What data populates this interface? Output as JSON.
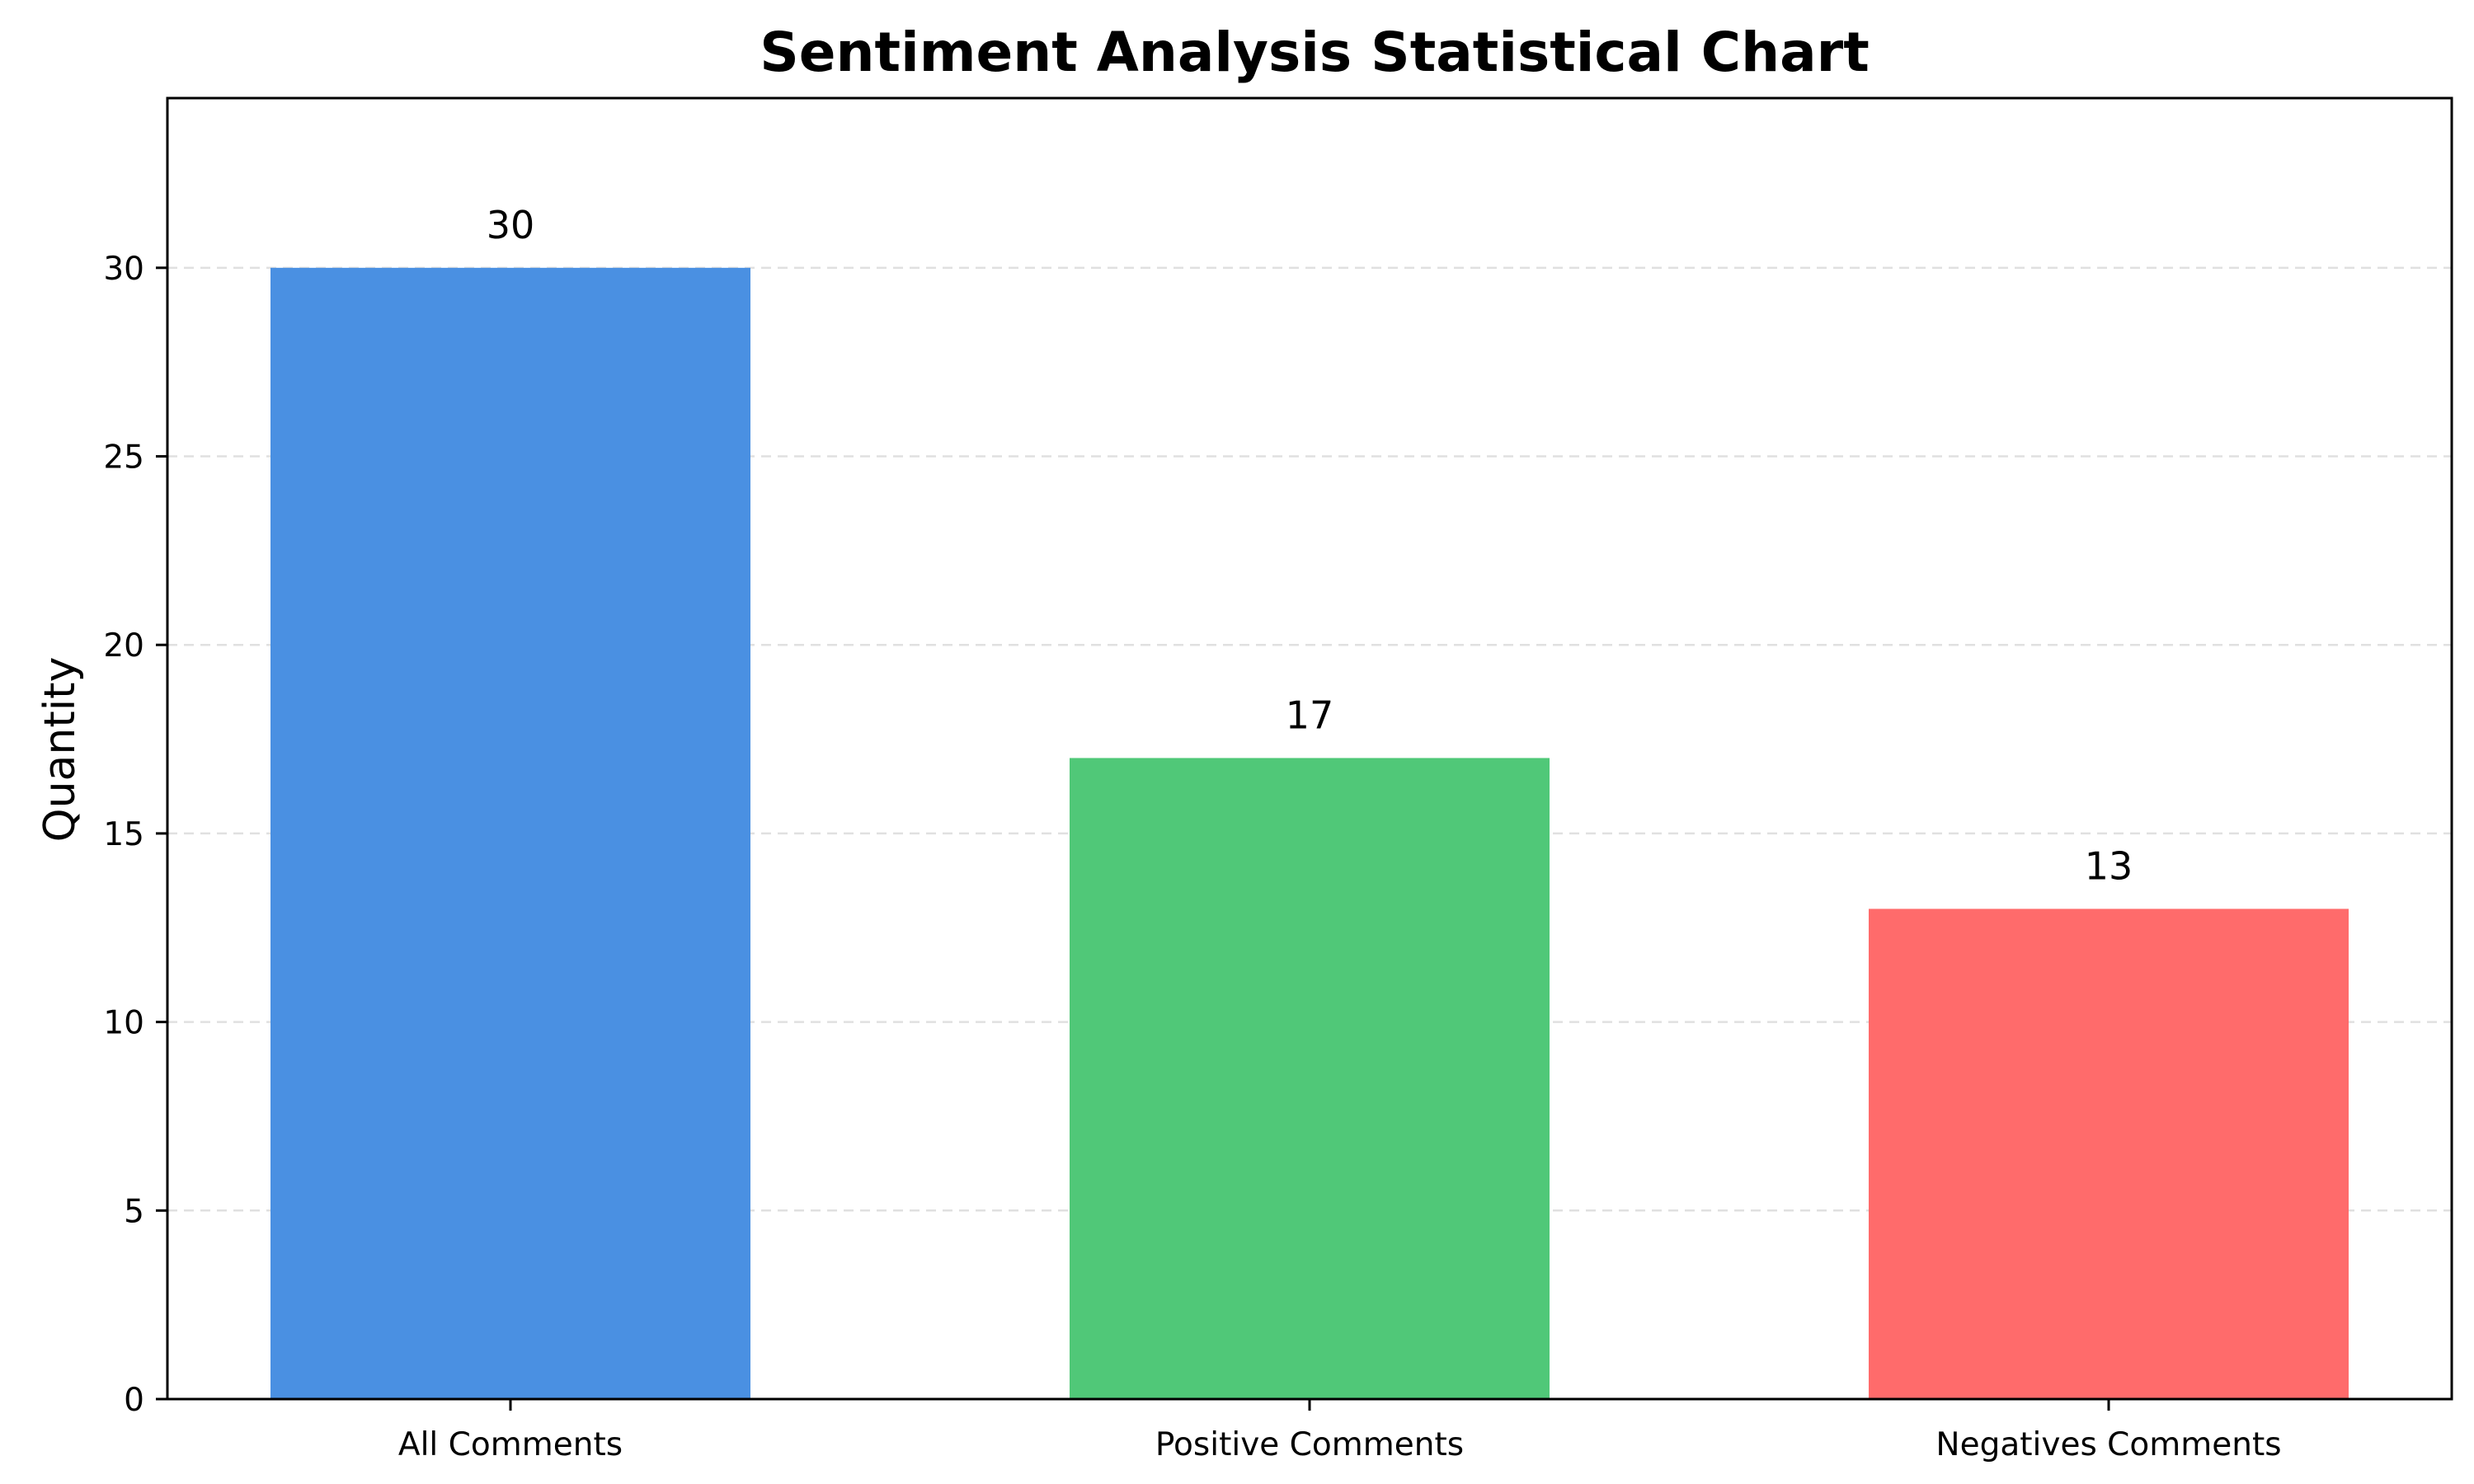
{
  "chart_data": {
    "type": "bar",
    "title": "Sentiment Analysis Statistical Chart",
    "xlabel": "",
    "ylabel": "Quantity",
    "categories": [
      "All Comments",
      "Positive Comments",
      "Negatives Comments"
    ],
    "values": [
      30,
      17,
      13
    ],
    "data_labels": [
      "30",
      "17",
      "13"
    ],
    "colors": [
      "#4a90e2",
      "#50c878",
      "#ff6b6b"
    ],
    "ylim": [
      0,
      34.5
    ],
    "yticks": [
      0,
      5,
      10,
      15,
      20,
      25,
      30
    ],
    "grid": "horizontal dashed",
    "legend": "none"
  }
}
